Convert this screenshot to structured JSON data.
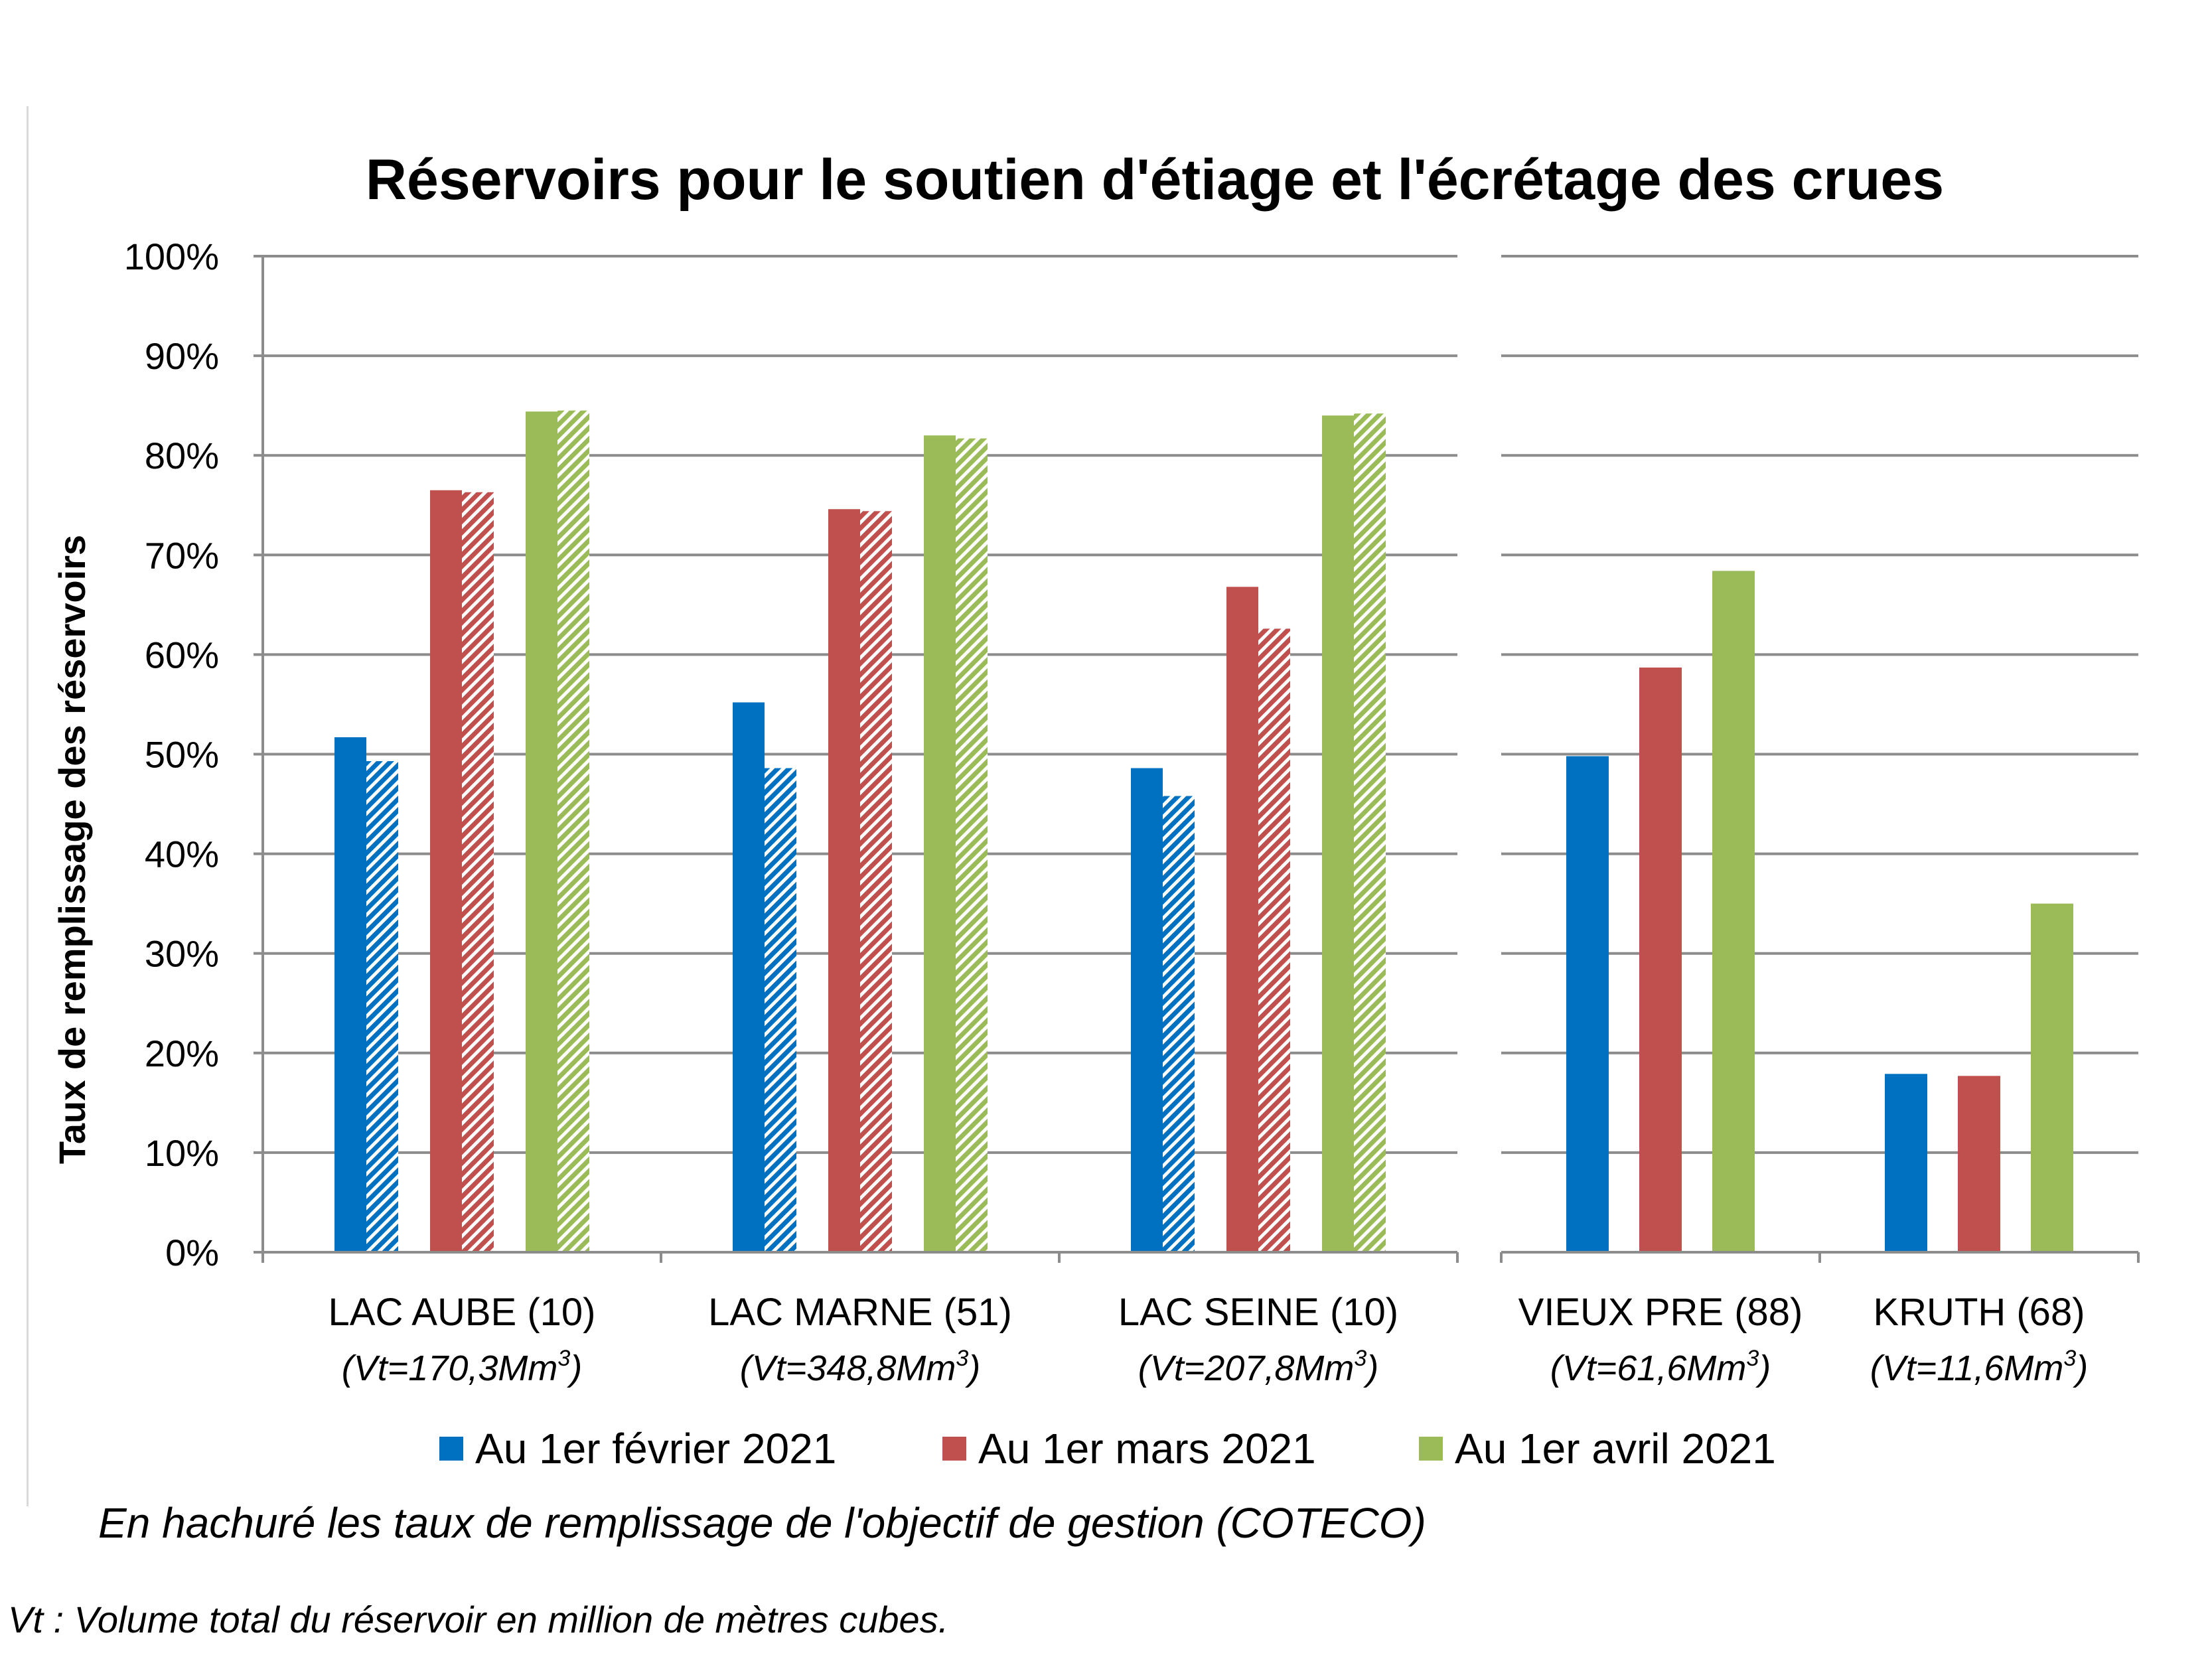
{
  "chart_data": {
    "type": "bar",
    "title": "Réservoirs pour le soutien d'étiage et l'écrétage des crues",
    "ylabel": "Taux de remplissage des réservoirs",
    "ylim": [
      0,
      100
    ],
    "yticks": [
      "0%",
      "10%",
      "20%",
      "30%",
      "40%",
      "50%",
      "60%",
      "70%",
      "80%",
      "90%",
      "100%"
    ],
    "categories": [
      {
        "name": "LAC AUBE (10)",
        "volume": "(Vt=170,3Mm",
        "sup": "3",
        "close": ")"
      },
      {
        "name": "LAC MARNE (51)",
        "volume": "(Vt=348,8Mm",
        "sup": "3",
        "close": ")"
      },
      {
        "name": "LAC SEINE (10)",
        "volume": "(Vt=207,8Mm",
        "sup": "3",
        "close": ")"
      },
      {
        "name": "VIEUX PRE (88)",
        "volume": "(Vt=61,6Mm",
        "sup": "3",
        "close": ")"
      },
      {
        "name": "KRUTH (68)",
        "volume": "(Vt=11,6Mm",
        "sup": "3",
        "close": ")"
      }
    ],
    "series": [
      {
        "name": "Au 1er février 2021",
        "color": "#0070C0",
        "values": [
          51.7,
          55.2,
          48.6,
          49.8,
          17.9
        ],
        "objective": [
          49.3,
          48.6,
          45.8,
          null,
          null
        ]
      },
      {
        "name": "Au 1er mars 2021",
        "color": "#C0504D",
        "values": [
          76.5,
          74.6,
          66.8,
          58.7,
          17.7
        ],
        "objective": [
          76.3,
          74.4,
          62.6,
          null,
          null
        ]
      },
      {
        "name": "Au 1er avril 2021",
        "color": "#9BBB59",
        "values": [
          84.4,
          82.0,
          84.0,
          68.4,
          35.0
        ],
        "objective": [
          84.5,
          81.7,
          84.2,
          null,
          null
        ]
      }
    ],
    "legend_position": "bottom",
    "grid": true
  },
  "note": "En hachuré les taux de remplissage de l'objectif de gestion (COTECO)",
  "footnote": "Vt : Volume total du réservoir en million de mètres cubes."
}
